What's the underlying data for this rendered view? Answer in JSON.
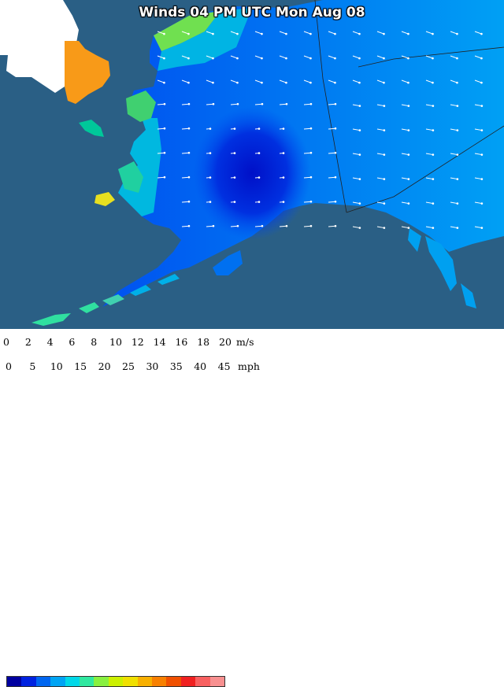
{
  "title": "Winds 04 PM UTC Mon Aug 08",
  "legend": {
    "ms_ticks": [
      "0",
      "2",
      "4",
      "6",
      "8",
      "10",
      "12",
      "14",
      "16",
      "18",
      "20"
    ],
    "ms_unit": "m/s",
    "mph_ticks": [
      "0",
      "5",
      "10",
      "15",
      "20",
      "25",
      "30",
      "35",
      "40",
      "45"
    ],
    "mph_unit": "mph",
    "colors": [
      "#0000a0",
      "#0022e0",
      "#0066f0",
      "#00a4f4",
      "#00d8e8",
      "#30e8a0",
      "#88f040",
      "#ccf000",
      "#f0e000",
      "#f8b000",
      "#f88000",
      "#f05000",
      "#f02020",
      "#f86060",
      "#f89090"
    ]
  },
  "colors": {
    "ocean": "#2a5f85",
    "outside_land": "#ffffff"
  }
}
